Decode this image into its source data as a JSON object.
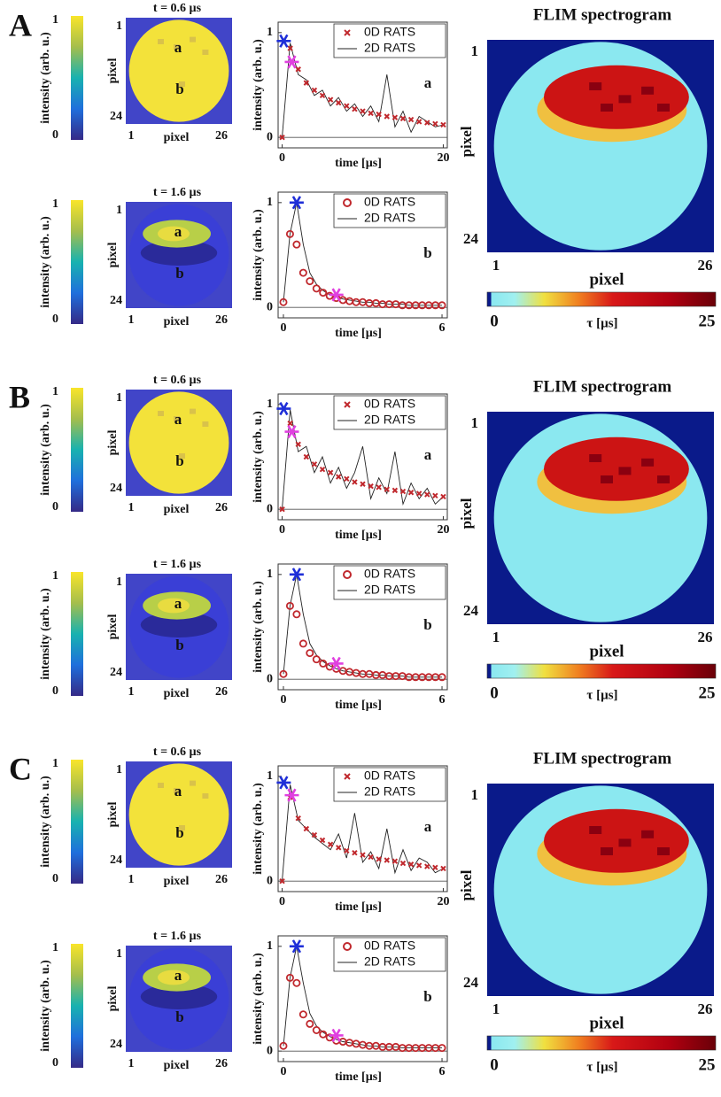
{
  "chart_data": [
    {
      "type": "panel",
      "label": "A",
      "images": [
        {
          "title": "t = 0.6 µs",
          "colorbar_label": "intensity (arb. u.)",
          "colorbar_ticks": [
            0,
            1
          ],
          "x_label": "pixel",
          "y_label": "pixel",
          "xticks": [
            1,
            26
          ],
          "yticks": [
            1,
            24
          ],
          "regions": [
            "a",
            "b"
          ]
        },
        {
          "title": "t = 1.6 µs",
          "colorbar_label": "intensity (arb. u.)",
          "colorbar_ticks": [
            0,
            1
          ],
          "x_label": "pixel",
          "y_label": "pixel",
          "xticks": [
            1,
            26
          ],
          "yticks": [
            1,
            24
          ],
          "regions": [
            "a",
            "b"
          ]
        }
      ],
      "plots": [
        {
          "type": "line",
          "x_label": "time [µs]",
          "y_label": "intensity (arb. u.)",
          "annotation": "a",
          "xlim": [
            -0.5,
            20.5
          ],
          "xticks": [
            0,
            20
          ],
          "ylim": [
            -0.1,
            1.1
          ],
          "yticks": [
            0,
            1
          ],
          "x": [
            0,
            1,
            2,
            3,
            4,
            5,
            6,
            7,
            8,
            9,
            10,
            11,
            12,
            13,
            14,
            15,
            16,
            17,
            18,
            19,
            20
          ],
          "series": [
            {
              "name": "0D RATS",
              "color": "#c0282d",
              "marker": "x",
              "values": [
                0,
                0.85,
                0.65,
                0.52,
                0.45,
                0.4,
                0.36,
                0.33,
                0.3,
                0.27,
                0.25,
                0.23,
                0.22,
                0.2,
                0.19,
                0.18,
                0.17,
                0.15,
                0.14,
                0.13,
                0.12
              ]
            },
            {
              "name": "2D RATS",
              "color": "#222222",
              "marker": "line",
              "values": [
                0,
                0.9,
                0.6,
                0.55,
                0.4,
                0.45,
                0.3,
                0.38,
                0.25,
                0.32,
                0.2,
                0.3,
                0.15,
                0.6,
                0.1,
                0.25,
                0.05,
                0.2,
                0.15,
                0.1,
                0.12
              ]
            }
          ],
          "markers": [
            {
              "x": 0.2,
              "y": 0.92,
              "color": "#1f2fd8"
            },
            {
              "x": 1.2,
              "y": 0.72,
              "color": "#e040e0"
            }
          ]
        },
        {
          "type": "line",
          "x_label": "time [µs]",
          "y_label": "intensity (arb. u.)",
          "annotation": "b",
          "xlim": [
            -0.2,
            6.2
          ],
          "xticks": [
            0,
            6
          ],
          "ylim": [
            -0.1,
            1.1
          ],
          "yticks": [
            0,
            1
          ],
          "x": [
            0,
            0.25,
            0.5,
            0.75,
            1,
            1.25,
            1.5,
            1.75,
            2,
            2.25,
            2.5,
            2.75,
            3,
            3.25,
            3.5,
            3.75,
            4,
            4.25,
            4.5,
            4.75,
            5,
            5.25,
            5.5,
            5.75,
            6
          ],
          "series": [
            {
              "name": "0D RATS",
              "color": "#c0282d",
              "marker": "o",
              "values": [
                0.05,
                0.7,
                0.6,
                0.33,
                0.25,
                0.18,
                0.14,
                0.11,
                0.09,
                0.07,
                0.06,
                0.05,
                0.05,
                0.04,
                0.04,
                0.03,
                0.03,
                0.03,
                0.02,
                0.02,
                0.02,
                0.02,
                0.02,
                0.02,
                0.02
              ]
            },
            {
              "name": "2D RATS",
              "color": "#222222",
              "marker": "line",
              "values": [
                0.05,
                0.7,
                1.0,
                0.6,
                0.33,
                0.22,
                0.16,
                0.12,
                0.1,
                0.08,
                0.07,
                0.06,
                0.05,
                0.05,
                0.04,
                0.04,
                0.03,
                0.03,
                0.03,
                0.02,
                0.02,
                0.02,
                0.02,
                0.02,
                0.02
              ]
            }
          ],
          "markers": [
            {
              "x": 0.5,
              "y": 1.0,
              "color": "#1f2fd8"
            },
            {
              "x": 2.0,
              "y": 0.12,
              "color": "#e040e0"
            }
          ]
        }
      ],
      "flim": {
        "title": "FLIM spectrogram",
        "x_label": "pixel",
        "y_label": "pixel",
        "xticks": [
          1,
          26
        ],
        "yticks": [
          1,
          24
        ],
        "colorbar_label": "τ [µs]",
        "colorbar_ticks": [
          0,
          25
        ]
      }
    },
    {
      "type": "panel",
      "label": "B",
      "images": [
        {
          "title": "t = 0.6 µs",
          "colorbar_label": "intensity (arb. u.)",
          "colorbar_ticks": [
            0,
            1
          ],
          "x_label": "pixel",
          "y_label": "pixel",
          "xticks": [
            1,
            26
          ],
          "yticks": [
            1,
            24
          ],
          "regions": [
            "a",
            "b"
          ]
        },
        {
          "title": "t = 1.6 µs",
          "colorbar_label": "intensity (arb. u.)",
          "colorbar_ticks": [
            0,
            1
          ],
          "x_label": "pixel",
          "y_label": "pixel",
          "xticks": [
            1,
            26
          ],
          "yticks": [
            1,
            24
          ],
          "regions": [
            "a",
            "b"
          ]
        }
      ],
      "plots": [
        {
          "type": "line",
          "x_label": "time [µs]",
          "y_label": "intensity (arb. u.)",
          "annotation": "a",
          "xlim": [
            -0.5,
            20.5
          ],
          "xticks": [
            0,
            20
          ],
          "ylim": [
            -0.1,
            1.1
          ],
          "yticks": [
            0,
            1
          ],
          "x": [
            0,
            1,
            2,
            3,
            4,
            5,
            6,
            7,
            8,
            9,
            10,
            11,
            12,
            13,
            14,
            15,
            16,
            17,
            18,
            19,
            20
          ],
          "series": [
            {
              "name": "0D RATS",
              "color": "#c0282d",
              "marker": "x",
              "values": [
                0,
                0.82,
                0.62,
                0.5,
                0.43,
                0.38,
                0.35,
                0.31,
                0.29,
                0.26,
                0.24,
                0.22,
                0.21,
                0.19,
                0.18,
                0.17,
                0.16,
                0.15,
                0.14,
                0.13,
                0.12
              ]
            },
            {
              "name": "2D RATS",
              "color": "#222222",
              "marker": "line",
              "values": [
                0,
                0.95,
                0.55,
                0.6,
                0.35,
                0.5,
                0.25,
                0.4,
                0.2,
                0.35,
                0.6,
                0.1,
                0.3,
                0.15,
                0.55,
                0.05,
                0.25,
                0.1,
                0.2,
                0.05,
                0.12
              ]
            }
          ],
          "markers": [
            {
              "x": 0.2,
              "y": 0.96,
              "color": "#1f2fd8"
            },
            {
              "x": 1.2,
              "y": 0.74,
              "color": "#e040e0"
            }
          ]
        },
        {
          "type": "line",
          "x_label": "time [µs]",
          "y_label": "intensity (arb. u.)",
          "annotation": "b",
          "xlim": [
            -0.2,
            6.2
          ],
          "xticks": [
            0,
            6
          ],
          "ylim": [
            -0.1,
            1.1
          ],
          "yticks": [
            0,
            1
          ],
          "x": [
            0,
            0.25,
            0.5,
            0.75,
            1,
            1.25,
            1.5,
            1.75,
            2,
            2.25,
            2.5,
            2.75,
            3,
            3.25,
            3.5,
            3.75,
            4,
            4.25,
            4.5,
            4.75,
            5,
            5.25,
            5.5,
            5.75,
            6
          ],
          "series": [
            {
              "name": "0D RATS",
              "color": "#c0282d",
              "marker": "o",
              "values": [
                0.05,
                0.7,
                0.62,
                0.34,
                0.25,
                0.19,
                0.15,
                0.12,
                0.1,
                0.08,
                0.07,
                0.06,
                0.05,
                0.05,
                0.04,
                0.04,
                0.03,
                0.03,
                0.03,
                0.02,
                0.02,
                0.02,
                0.02,
                0.02,
                0.02
              ]
            },
            {
              "name": "2D RATS",
              "color": "#222222",
              "marker": "line",
              "values": [
                0.05,
                0.7,
                1.0,
                0.62,
                0.34,
                0.23,
                0.17,
                0.13,
                0.1,
                0.08,
                0.07,
                0.06,
                0.05,
                0.05,
                0.04,
                0.04,
                0.03,
                0.03,
                0.03,
                0.02,
                0.02,
                0.02,
                0.02,
                0.02,
                0.02
              ]
            }
          ],
          "markers": [
            {
              "x": 0.5,
              "y": 1.0,
              "color": "#1f2fd8"
            },
            {
              "x": 2.0,
              "y": 0.15,
              "color": "#e040e0"
            }
          ]
        }
      ],
      "flim": {
        "title": "FLIM spectrogram",
        "x_label": "pixel",
        "y_label": "pixel",
        "xticks": [
          1,
          26
        ],
        "yticks": [
          1,
          24
        ],
        "colorbar_label": "τ [µs]",
        "colorbar_ticks": [
          0,
          25
        ]
      }
    },
    {
      "type": "panel",
      "label": "C",
      "images": [
        {
          "title": "t = 0.6 µs",
          "colorbar_label": "intensity (arb. u.)",
          "colorbar_ticks": [
            0,
            1
          ],
          "x_label": "pixel",
          "y_label": "pixel",
          "xticks": [
            1,
            26
          ],
          "yticks": [
            1,
            24
          ],
          "regions": [
            "a",
            "b"
          ]
        },
        {
          "title": "t = 1.6 µs",
          "colorbar_label": "intensity (arb. u.)",
          "colorbar_ticks": [
            0,
            1
          ],
          "x_label": "pixel",
          "y_label": "pixel",
          "xticks": [
            1,
            26
          ],
          "yticks": [
            1,
            24
          ],
          "regions": [
            "a",
            "b"
          ]
        }
      ],
      "plots": [
        {
          "type": "line",
          "x_label": "time [µs]",
          "y_label": "intensity (arb. u.)",
          "annotation": "a",
          "xlim": [
            -0.5,
            20.5
          ],
          "xticks": [
            0,
            20
          ],
          "ylim": [
            -0.1,
            1.1
          ],
          "yticks": [
            0,
            1
          ],
          "x": [
            0,
            1,
            2,
            3,
            4,
            5,
            6,
            7,
            8,
            9,
            10,
            11,
            12,
            13,
            14,
            15,
            16,
            17,
            18,
            19,
            20
          ],
          "series": [
            {
              "name": "0D RATS",
              "color": "#c0282d",
              "marker": "x",
              "values": [
                0,
                0.8,
                0.6,
                0.5,
                0.44,
                0.39,
                0.35,
                0.32,
                0.29,
                0.27,
                0.25,
                0.23,
                0.21,
                0.2,
                0.19,
                0.17,
                0.16,
                0.15,
                0.14,
                0.13,
                0.12
              ]
            },
            {
              "name": "2D RATS",
              "color": "#222222",
              "marker": "line",
              "values": [
                0,
                0.92,
                0.58,
                0.5,
                0.42,
                0.36,
                0.3,
                0.45,
                0.22,
                0.65,
                0.18,
                0.28,
                0.12,
                0.5,
                0.08,
                0.3,
                0.1,
                0.22,
                0.18,
                0.08,
                0.12
              ]
            }
          ],
          "markers": [
            {
              "x": 0.2,
              "y": 0.94,
              "color": "#1f2fd8"
            },
            {
              "x": 1.2,
              "y": 0.82,
              "color": "#e040e0"
            }
          ]
        },
        {
          "type": "line",
          "x_label": "time [µs]",
          "y_label": "intensity (arb. u.)",
          "annotation": "b",
          "xlim": [
            -0.2,
            6.2
          ],
          "xticks": [
            0,
            6
          ],
          "ylim": [
            -0.1,
            1.1
          ],
          "yticks": [
            0,
            1
          ],
          "x": [
            0,
            0.25,
            0.5,
            0.75,
            1,
            1.25,
            1.5,
            1.75,
            2,
            2.25,
            2.5,
            2.75,
            3,
            3.25,
            3.5,
            3.75,
            4,
            4.25,
            4.5,
            4.75,
            5,
            5.25,
            5.5,
            5.75,
            6
          ],
          "series": [
            {
              "name": "0D RATS",
              "color": "#c0282d",
              "marker": "o",
              "values": [
                0.05,
                0.7,
                0.65,
                0.35,
                0.26,
                0.2,
                0.16,
                0.13,
                0.1,
                0.09,
                0.08,
                0.07,
                0.06,
                0.05,
                0.05,
                0.04,
                0.04,
                0.04,
                0.03,
                0.03,
                0.03,
                0.03,
                0.03,
                0.03,
                0.03
              ]
            },
            {
              "name": "2D RATS",
              "color": "#222222",
              "marker": "line",
              "values": [
                0.05,
                0.7,
                1.0,
                0.65,
                0.36,
                0.24,
                0.18,
                0.14,
                0.11,
                0.09,
                0.08,
                0.07,
                0.06,
                0.05,
                0.05,
                0.04,
                0.04,
                0.04,
                0.03,
                0.03,
                0.03,
                0.03,
                0.03,
                0.03,
                0.03
              ]
            }
          ],
          "markers": [
            {
              "x": 0.5,
              "y": 1.0,
              "color": "#1f2fd8"
            },
            {
              "x": 2.0,
              "y": 0.15,
              "color": "#e040e0"
            }
          ]
        }
      ],
      "flim": {
        "title": "FLIM spectrogram",
        "x_label": "pixel",
        "y_label": "pixel",
        "xticks": [
          1,
          26
        ],
        "yticks": [
          1,
          24
        ],
        "colorbar_label": "τ [µs]",
        "colorbar_ticks": [
          0,
          25
        ]
      }
    }
  ]
}
